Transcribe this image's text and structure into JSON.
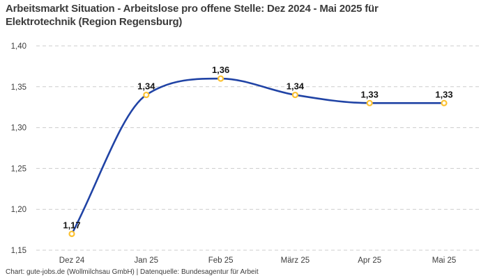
{
  "header": {
    "title": "Arbeitsmarkt Situation - Arbeitslose pro offene Stelle: Dez 2024 - Mai 2025 für\nElektrotechnik (Region Regensburg)"
  },
  "footer": {
    "text": "Chart: gute-jobs.de (Wollmilchsau GmbH) | Datenquelle: Bundesagentur für Arbeit"
  },
  "chart_data": {
    "type": "line",
    "title": "Arbeitsmarkt Situation - Arbeitslose pro offene Stelle: Dez 2024 - Mai 2025 für Elektrotechnik (Region Regensburg)",
    "categories": [
      "Dez 24",
      "Jan 25",
      "Feb 25",
      "März 25",
      "Apr 25",
      "Mai 25"
    ],
    "values": [
      1.17,
      1.34,
      1.36,
      1.34,
      1.33,
      1.33
    ],
    "value_labels": [
      "1,17",
      "1,34",
      "1,36",
      "1,34",
      "1,33",
      "1,33"
    ],
    "xlabel": "",
    "ylabel": "",
    "ylim": [
      1.15,
      1.4
    ],
    "y_ticks": [
      {
        "value": 1.15,
        "label": "1,15"
      },
      {
        "value": 1.2,
        "label": "1,20"
      },
      {
        "value": 1.25,
        "label": "1,25"
      },
      {
        "value": 1.3,
        "label": "1,30"
      },
      {
        "value": 1.35,
        "label": "1,35"
      },
      {
        "value": 1.4,
        "label": "1,40"
      }
    ],
    "grid": "dashed-horizontal",
    "legend": "none",
    "curve": "smooth-monotone",
    "line_color": "#2043a5",
    "marker_color": "#fcc233",
    "marker_fill": "#ffffff",
    "grid_color": "#cccccc",
    "tick_color": "#3d3d3d",
    "data_label_color": "#141414"
  }
}
